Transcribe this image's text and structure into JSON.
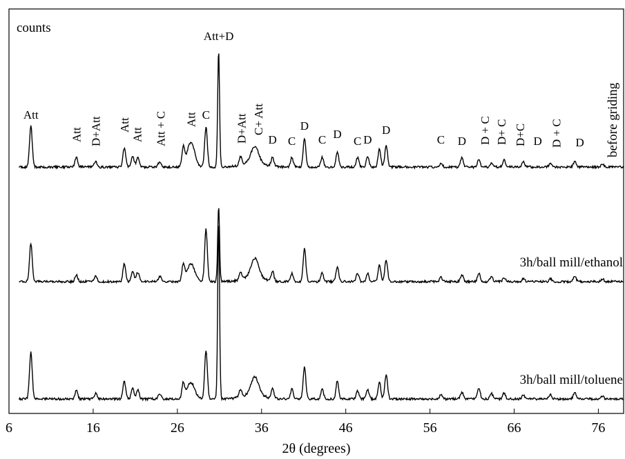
{
  "chart_data": {
    "type": "line",
    "title": "",
    "xlabel": "2θ (degrees)",
    "ylabel": "counts",
    "xlim": [
      6,
      79
    ],
    "xticks": [
      6,
      16,
      26,
      36,
      46,
      56,
      66,
      76
    ],
    "grid": false,
    "legend": "none",
    "y_ticks_shown": false,
    "series": [
      {
        "name": "before griding",
        "baseline": 0,
        "peaks": [
          {
            "x": 8.6,
            "h": 60
          },
          {
            "x": 14.0,
            "h": 14
          },
          {
            "x": 16.3,
            "h": 8
          },
          {
            "x": 19.7,
            "h": 28
          },
          {
            "x": 20.7,
            "h": 16
          },
          {
            "x": 21.3,
            "h": 14
          },
          {
            "x": 23.9,
            "h": 8
          },
          {
            "x": 26.7,
            "h": 26
          },
          {
            "x": 27.6,
            "h": 36
          },
          {
            "x": 29.4,
            "h": 58
          },
          {
            "x": 30.9,
            "h": 170
          },
          {
            "x": 33.5,
            "h": 12
          },
          {
            "x": 35.2,
            "h": 24
          },
          {
            "x": 37.3,
            "h": 14
          },
          {
            "x": 39.6,
            "h": 14
          },
          {
            "x": 41.1,
            "h": 42
          },
          {
            "x": 43.2,
            "h": 14
          },
          {
            "x": 45.0,
            "h": 22
          },
          {
            "x": 47.4,
            "h": 14
          },
          {
            "x": 48.6,
            "h": 16
          },
          {
            "x": 50.0,
            "h": 26
          },
          {
            "x": 50.8,
            "h": 32
          },
          {
            "x": 57.3,
            "h": 6
          },
          {
            "x": 59.8,
            "h": 14
          },
          {
            "x": 61.8,
            "h": 10
          },
          {
            "x": 63.3,
            "h": 6
          },
          {
            "x": 64.8,
            "h": 10
          },
          {
            "x": 67.1,
            "h": 8
          },
          {
            "x": 70.3,
            "h": 6
          },
          {
            "x": 73.2,
            "h": 8
          },
          {
            "x": 76.5,
            "h": 4
          }
        ],
        "annotations": [
          {
            "x": 8.6,
            "text": "Att",
            "rot": false,
            "dy": 10
          },
          {
            "x": 14.0,
            "text": "Att",
            "rot": true,
            "dy": 22
          },
          {
            "x": 16.3,
            "text": "D+Att",
            "rot": true,
            "dy": 22
          },
          {
            "x": 19.7,
            "text": "Att",
            "rot": true,
            "dy": 22
          },
          {
            "x": 21.2,
            "text": "Att",
            "rot": true,
            "dy": 22
          },
          {
            "x": 24.0,
            "text": "Att + C",
            "rot": true,
            "dy": 22
          },
          {
            "x": 27.6,
            "text": "Att",
            "rot": true,
            "dy": 22
          },
          {
            "x": 29.4,
            "text": "C",
            "rot": false,
            "dy": 12
          },
          {
            "x": 30.9,
            "text": "Att+D",
            "rot": false,
            "dy": 14
          },
          {
            "x": 33.6,
            "text": "D+Att",
            "rot": true,
            "dy": 22
          },
          {
            "x": 35.6,
            "text": "C+ Att",
            "rot": true,
            "dy": 22
          },
          {
            "x": 37.3,
            "text": "D",
            "rot": false,
            "dy": 20
          },
          {
            "x": 39.6,
            "text": "C",
            "rot": false,
            "dy": 18
          },
          {
            "x": 41.1,
            "text": "D",
            "rot": false,
            "dy": 12
          },
          {
            "x": 43.2,
            "text": "C",
            "rot": false,
            "dy": 20
          },
          {
            "x": 45.0,
            "text": "D",
            "rot": false,
            "dy": 20
          },
          {
            "x": 47.4,
            "text": "C",
            "rot": false,
            "dy": 18
          },
          {
            "x": 48.6,
            "text": "D",
            "rot": false,
            "dy": 18
          },
          {
            "x": 50.8,
            "text": "D",
            "rot": false,
            "dy": 16
          },
          {
            "x": 57.3,
            "text": "C",
            "rot": false,
            "dy": 28
          },
          {
            "x": 59.8,
            "text": "D",
            "rot": false,
            "dy": 18
          },
          {
            "x": 62.5,
            "text": "D + C",
            "rot": true,
            "dy": 22
          },
          {
            "x": 64.5,
            "text": "D+ C",
            "rot": true,
            "dy": 22
          },
          {
            "x": 66.7,
            "text": "D+C",
            "rot": true,
            "dy": 22
          },
          {
            "x": 68.8,
            "text": "D",
            "rot": false,
            "dy": 26
          },
          {
            "x": 71.0,
            "text": "D + C",
            "rot": true,
            "dy": 22
          },
          {
            "x": 73.8,
            "text": "D",
            "rot": false,
            "dy": 22
          }
        ]
      },
      {
        "name": "3h/ball mill/ethanol",
        "baseline": 0,
        "peaks": [
          {
            "x": 8.6,
            "h": 56
          },
          {
            "x": 14.0,
            "h": 10
          },
          {
            "x": 16.3,
            "h": 8
          },
          {
            "x": 19.7,
            "h": 26
          },
          {
            "x": 20.7,
            "h": 16
          },
          {
            "x": 21.3,
            "h": 14
          },
          {
            "x": 23.9,
            "h": 8
          },
          {
            "x": 26.7,
            "h": 24
          },
          {
            "x": 27.6,
            "h": 26
          },
          {
            "x": 29.4,
            "h": 76
          },
          {
            "x": 30.9,
            "h": 110
          },
          {
            "x": 33.5,
            "h": 12
          },
          {
            "x": 35.2,
            "h": 28
          },
          {
            "x": 37.3,
            "h": 14
          },
          {
            "x": 39.6,
            "h": 12
          },
          {
            "x": 41.1,
            "h": 48
          },
          {
            "x": 43.2,
            "h": 12
          },
          {
            "x": 45.0,
            "h": 22
          },
          {
            "x": 47.4,
            "h": 12
          },
          {
            "x": 48.6,
            "h": 12
          },
          {
            "x": 50.0,
            "h": 24
          },
          {
            "x": 50.8,
            "h": 32
          },
          {
            "x": 57.3,
            "h": 6
          },
          {
            "x": 59.8,
            "h": 10
          },
          {
            "x": 61.8,
            "h": 12
          },
          {
            "x": 63.3,
            "h": 8
          },
          {
            "x": 64.8,
            "h": 6
          },
          {
            "x": 67.1,
            "h": 4
          },
          {
            "x": 70.3,
            "h": 4
          },
          {
            "x": 73.2,
            "h": 8
          },
          {
            "x": 76.5,
            "h": 4
          }
        ]
      },
      {
        "name": "3h/ball mill/toluene",
        "baseline": 0,
        "peaks": [
          {
            "x": 8.6,
            "h": 68
          },
          {
            "x": 14.0,
            "h": 12
          },
          {
            "x": 16.3,
            "h": 8
          },
          {
            "x": 19.7,
            "h": 26
          },
          {
            "x": 20.7,
            "h": 16
          },
          {
            "x": 21.3,
            "h": 14
          },
          {
            "x": 23.9,
            "h": 8
          },
          {
            "x": 26.7,
            "h": 22
          },
          {
            "x": 27.6,
            "h": 24
          },
          {
            "x": 29.4,
            "h": 70
          },
          {
            "x": 30.9,
            "h": 260
          },
          {
            "x": 33.5,
            "h": 12
          },
          {
            "x": 35.2,
            "h": 26
          },
          {
            "x": 37.3,
            "h": 14
          },
          {
            "x": 39.6,
            "h": 14
          },
          {
            "x": 41.1,
            "h": 46
          },
          {
            "x": 43.2,
            "h": 14
          },
          {
            "x": 45.0,
            "h": 26
          },
          {
            "x": 47.4,
            "h": 12
          },
          {
            "x": 48.6,
            "h": 14
          },
          {
            "x": 50.0,
            "h": 24
          },
          {
            "x": 50.8,
            "h": 36
          },
          {
            "x": 57.3,
            "h": 6
          },
          {
            "x": 59.8,
            "h": 10
          },
          {
            "x": 61.8,
            "h": 16
          },
          {
            "x": 63.3,
            "h": 8
          },
          {
            "x": 64.8,
            "h": 8
          },
          {
            "x": 67.1,
            "h": 6
          },
          {
            "x": 70.3,
            "h": 6
          },
          {
            "x": 73.2,
            "h": 10
          },
          {
            "x": 76.5,
            "h": 4
          }
        ]
      }
    ]
  }
}
